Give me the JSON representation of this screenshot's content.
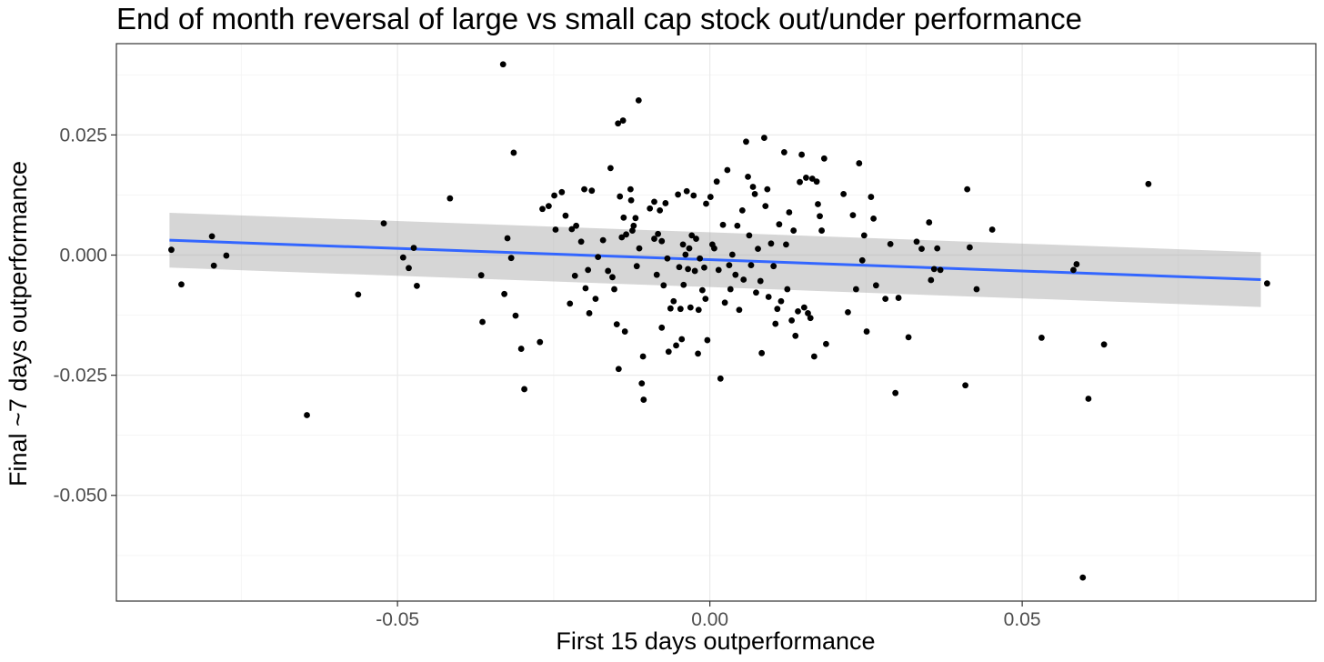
{
  "chart_data": {
    "type": "scatter",
    "title": "End of month reversal of large vs small cap stock out/under performance",
    "xlabel": "First 15 days outperformance",
    "ylabel": "Final ~7 days outperformance",
    "xlim": [
      -0.095,
      0.097
    ],
    "ylim": [
      -0.072,
      0.044
    ],
    "x_ticks": [
      -0.05,
      0.0,
      0.05
    ],
    "x_tick_labels": [
      "-0.05",
      "0.00",
      "0.05"
    ],
    "y_ticks": [
      -0.05,
      -0.025,
      0.0,
      0.025
    ],
    "y_tick_labels": [
      "-0.050",
      "-0.025",
      "0.000",
      "0.025"
    ],
    "grid": true,
    "theme": "bw",
    "colors": {
      "points": "#000000",
      "trend_line": "#3366ff",
      "confidence_band": "#999999"
    },
    "trend_line": {
      "method": "linear regression",
      "x": [
        -0.0865,
        0.0882
      ],
      "y": [
        0.0031,
        -0.0051
      ],
      "ci_lower": [
        -0.0026,
        -0.0108
      ],
      "ci_upper": [
        0.0088,
        0.0006
      ]
    },
    "points": [
      {
        "x": -0.0862,
        "y": 0.0011
      },
      {
        "x": -0.0846,
        "y": -0.0061
      },
      {
        "x": -0.0797,
        "y": 0.0039
      },
      {
        "x": -0.0794,
        "y": -0.0022
      },
      {
        "x": -0.0774,
        "y": -0.0001
      },
      {
        "x": -0.0645,
        "y": -0.0333
      },
      {
        "x": -0.0563,
        "y": -0.0082
      },
      {
        "x": -0.0522,
        "y": 0.0066
      },
      {
        "x": -0.0491,
        "y": -0.0005
      },
      {
        "x": -0.0482,
        "y": -0.0027
      },
      {
        "x": -0.0474,
        "y": 0.0015
      },
      {
        "x": -0.0469,
        "y": -0.0064
      },
      {
        "x": -0.0416,
        "y": 0.0118
      },
      {
        "x": -0.0366,
        "y": -0.0042
      },
      {
        "x": -0.0364,
        "y": -0.0139
      },
      {
        "x": -0.0331,
        "y": 0.0397
      },
      {
        "x": -0.0329,
        "y": -0.0081
      },
      {
        "x": -0.0324,
        "y": 0.0035
      },
      {
        "x": -0.0318,
        "y": -0.0006
      },
      {
        "x": -0.0314,
        "y": 0.0213
      },
      {
        "x": -0.0311,
        "y": -0.0126
      },
      {
        "x": -0.0302,
        "y": -0.0195
      },
      {
        "x": -0.0297,
        "y": -0.0279
      },
      {
        "x": -0.0272,
        "y": -0.0181
      },
      {
        "x": -0.0268,
        "y": 0.0096
      },
      {
        "x": -0.0258,
        "y": 0.0102
      },
      {
        "x": -0.0249,
        "y": 0.0124
      },
      {
        "x": -0.0247,
        "y": 0.0053
      },
      {
        "x": -0.0237,
        "y": 0.0131
      },
      {
        "x": -0.0231,
        "y": 0.0082
      },
      {
        "x": -0.0224,
        "y": -0.0101
      },
      {
        "x": -0.0221,
        "y": 0.0054
      },
      {
        "x": -0.0216,
        "y": -0.0043
      },
      {
        "x": -0.0214,
        "y": 0.0061
      },
      {
        "x": -0.0206,
        "y": 0.0028
      },
      {
        "x": -0.0201,
        "y": 0.0137
      },
      {
        "x": -0.0199,
        "y": -0.0069
      },
      {
        "x": -0.0195,
        "y": -0.0031
      },
      {
        "x": -0.0193,
        "y": -0.0121
      },
      {
        "x": -0.0189,
        "y": 0.0134
      },
      {
        "x": -0.0183,
        "y": -0.0091
      },
      {
        "x": -0.0179,
        "y": -0.0004
      },
      {
        "x": -0.0171,
        "y": 0.0031
      },
      {
        "x": -0.0163,
        "y": -0.0033
      },
      {
        "x": -0.0159,
        "y": 0.0181
      },
      {
        "x": -0.0156,
        "y": -0.0046
      },
      {
        "x": -0.0153,
        "y": -0.0071
      },
      {
        "x": -0.0149,
        "y": -0.0144
      },
      {
        "x": -0.0147,
        "y": 0.0274
      },
      {
        "x": -0.0144,
        "y": 0.0122
      },
      {
        "x": -0.0146,
        "y": -0.0237
      },
      {
        "x": -0.0141,
        "y": 0.0037
      },
      {
        "x": -0.0139,
        "y": 0.028
      },
      {
        "x": -0.0138,
        "y": 0.0078
      },
      {
        "x": -0.0136,
        "y": -0.0159
      },
      {
        "x": -0.0134,
        "y": 0.0043
      },
      {
        "x": -0.0127,
        "y": 0.0137
      },
      {
        "x": -0.0126,
        "y": 0.0114
      },
      {
        "x": -0.0124,
        "y": 0.0051
      },
      {
        "x": -0.0122,
        "y": 0.0061
      },
      {
        "x": -0.0119,
        "y": 0.0077
      },
      {
        "x": -0.0117,
        "y": -0.0023
      },
      {
        "x": -0.0114,
        "y": 0.0322
      },
      {
        "x": -0.0113,
        "y": 0.0014
      },
      {
        "x": -0.0109,
        "y": -0.0267
      },
      {
        "x": -0.0107,
        "y": -0.0211
      },
      {
        "x": -0.0106,
        "y": -0.0301
      },
      {
        "x": -0.0096,
        "y": 0.0097
      },
      {
        "x": -0.0089,
        "y": 0.0111
      },
      {
        "x": -0.0089,
        "y": 0.0034
      },
      {
        "x": -0.0085,
        "y": -0.0041
      },
      {
        "x": -0.0083,
        "y": 0.0044
      },
      {
        "x": -0.008,
        "y": 0.0093
      },
      {
        "x": -0.0077,
        "y": -0.0151
      },
      {
        "x": -0.0077,
        "y": 0.0029
      },
      {
        "x": -0.0074,
        "y": -0.0063
      },
      {
        "x": -0.0071,
        "y": 0.0108
      },
      {
        "x": -0.0068,
        "y": -0.0007
      },
      {
        "x": -0.0066,
        "y": -0.0201
      },
      {
        "x": -0.0063,
        "y": -0.0111
      },
      {
        "x": -0.0058,
        "y": -0.0096
      },
      {
        "x": -0.0054,
        "y": -0.0188
      },
      {
        "x": -0.0051,
        "y": 0.0126
      },
      {
        "x": -0.0049,
        "y": -0.0025
      },
      {
        "x": -0.0047,
        "y": -0.0112
      },
      {
        "x": -0.0045,
        "y": -0.0175
      },
      {
        "x": -0.0043,
        "y": 0.0022
      },
      {
        "x": -0.0042,
        "y": -0.0062
      },
      {
        "x": -0.0039,
        "y": 0.0001
      },
      {
        "x": -0.0037,
        "y": 0.0133
      },
      {
        "x": -0.0035,
        "y": -0.0029
      },
      {
        "x": -0.0033,
        "y": 0.0014
      },
      {
        "x": -0.0031,
        "y": -0.0109
      },
      {
        "x": -0.0029,
        "y": 0.0041
      },
      {
        "x": -0.0026,
        "y": 0.0124
      },
      {
        "x": -0.0024,
        "y": -0.0033
      },
      {
        "x": -0.0022,
        "y": 0.0034
      },
      {
        "x": -0.0019,
        "y": -0.0205
      },
      {
        "x": -0.0018,
        "y": -0.0114
      },
      {
        "x": -0.0016,
        "y": -0.0007
      },
      {
        "x": -0.0012,
        "y": -0.0073
      },
      {
        "x": -0.0009,
        "y": -0.0026
      },
      {
        "x": -0.0007,
        "y": -0.0091
      },
      {
        "x": -0.0006,
        "y": 0.0107
      },
      {
        "x": -0.0004,
        "y": -0.0177
      },
      {
        "x": 0.0001,
        "y": 0.0121
      },
      {
        "x": 0.0004,
        "y": 0.0022
      },
      {
        "x": 0.0007,
        "y": 0.0014
      },
      {
        "x": 0.0011,
        "y": 0.0153
      },
      {
        "x": 0.0014,
        "y": -0.0031
      },
      {
        "x": 0.0017,
        "y": -0.0257
      },
      {
        "x": 0.0021,
        "y": 0.0063
      },
      {
        "x": 0.0024,
        "y": -0.0099
      },
      {
        "x": 0.0028,
        "y": 0.0177
      },
      {
        "x": 0.0031,
        "y": -0.0021
      },
      {
        "x": 0.0033,
        "y": -0.0071
      },
      {
        "x": 0.0036,
        "y": 0.0001
      },
      {
        "x": 0.0041,
        "y": -0.0041
      },
      {
        "x": 0.0044,
        "y": 0.0061
      },
      {
        "x": 0.0047,
        "y": -0.0114
      },
      {
        "x": 0.0052,
        "y": 0.0093
      },
      {
        "x": 0.0054,
        "y": -0.0051
      },
      {
        "x": 0.0058,
        "y": 0.0236
      },
      {
        "x": 0.0061,
        "y": 0.0163
      },
      {
        "x": 0.0063,
        "y": 0.0041
      },
      {
        "x": 0.0066,
        "y": -0.0021
      },
      {
        "x": 0.0069,
        "y": 0.0142
      },
      {
        "x": 0.0072,
        "y": 0.0127
      },
      {
        "x": 0.0074,
        "y": -0.0078
      },
      {
        "x": 0.0077,
        "y": 0.0013
      },
      {
        "x": 0.0081,
        "y": -0.0054
      },
      {
        "x": 0.0083,
        "y": -0.0204
      },
      {
        "x": 0.0087,
        "y": 0.0244
      },
      {
        "x": 0.0089,
        "y": 0.0102
      },
      {
        "x": 0.0092,
        "y": 0.0137
      },
      {
        "x": 0.0094,
        "y": -0.0087
      },
      {
        "x": 0.0098,
        "y": 0.0024
      },
      {
        "x": 0.0102,
        "y": -0.0023
      },
      {
        "x": 0.0105,
        "y": -0.0143
      },
      {
        "x": 0.0108,
        "y": -0.0112
      },
      {
        "x": 0.0111,
        "y": 0.0064
      },
      {
        "x": 0.0114,
        "y": -0.0096
      },
      {
        "x": 0.0119,
        "y": 0.0214
      },
      {
        "x": 0.0122,
        "y": 0.0022
      },
      {
        "x": 0.0124,
        "y": -0.0071
      },
      {
        "x": 0.0127,
        "y": 0.0089
      },
      {
        "x": 0.0131,
        "y": -0.0136
      },
      {
        "x": 0.0134,
        "y": 0.0051
      },
      {
        "x": 0.0137,
        "y": -0.0168
      },
      {
        "x": 0.0141,
        "y": -0.0117
      },
      {
        "x": 0.0144,
        "y": 0.0152
      },
      {
        "x": 0.0147,
        "y": 0.0209
      },
      {
        "x": 0.0151,
        "y": -0.0109
      },
      {
        "x": 0.0154,
        "y": 0.0161
      },
      {
        "x": 0.0157,
        "y": -0.0121
      },
      {
        "x": 0.0161,
        "y": -0.0131
      },
      {
        "x": 0.0164,
        "y": 0.0159
      },
      {
        "x": 0.0167,
        "y": -0.0211
      },
      {
        "x": 0.0171,
        "y": 0.0153
      },
      {
        "x": 0.0173,
        "y": 0.0106
      },
      {
        "x": 0.0176,
        "y": 0.0081
      },
      {
        "x": 0.0179,
        "y": 0.0051
      },
      {
        "x": 0.0183,
        "y": 0.0201
      },
      {
        "x": 0.0186,
        "y": -0.0185
      },
      {
        "x": 0.0214,
        "y": 0.0127
      },
      {
        "x": 0.0221,
        "y": -0.0119
      },
      {
        "x": 0.0229,
        "y": 0.0083
      },
      {
        "x": 0.0234,
        "y": -0.0071
      },
      {
        "x": 0.0239,
        "y": 0.0191
      },
      {
        "x": 0.0244,
        "y": -0.0011
      },
      {
        "x": 0.0247,
        "y": 0.0041
      },
      {
        "x": 0.0251,
        "y": -0.0159
      },
      {
        "x": 0.0258,
        "y": 0.0121
      },
      {
        "x": 0.0262,
        "y": 0.0076
      },
      {
        "x": 0.0266,
        "y": -0.0063
      },
      {
        "x": 0.0281,
        "y": -0.0091
      },
      {
        "x": 0.0289,
        "y": 0.0023
      },
      {
        "x": 0.0297,
        "y": -0.0287
      },
      {
        "x": 0.0302,
        "y": -0.0089
      },
      {
        "x": 0.0318,
        "y": -0.0171
      },
      {
        "x": 0.0331,
        "y": 0.0028
      },
      {
        "x": 0.0339,
        "y": 0.0013
      },
      {
        "x": 0.0351,
        "y": 0.0068
      },
      {
        "x": 0.0354,
        "y": -0.0052
      },
      {
        "x": 0.0359,
        "y": -0.0029
      },
      {
        "x": 0.0364,
        "y": 0.0014
      },
      {
        "x": 0.0369,
        "y": -0.0031
      },
      {
        "x": 0.0409,
        "y": -0.0271
      },
      {
        "x": 0.0412,
        "y": 0.0137
      },
      {
        "x": 0.0416,
        "y": 0.0016
      },
      {
        "x": 0.0427,
        "y": -0.0071
      },
      {
        "x": 0.0452,
        "y": 0.0053
      },
      {
        "x": 0.0531,
        "y": -0.0172
      },
      {
        "x": 0.0582,
        "y": -0.0031
      },
      {
        "x": 0.0587,
        "y": -0.0019
      },
      {
        "x": 0.0597,
        "y": -0.0671
      },
      {
        "x": 0.0606,
        "y": -0.0299
      },
      {
        "x": 0.0631,
        "y": -0.0186
      },
      {
        "x": 0.0702,
        "y": 0.0148
      },
      {
        "x": 0.0892,
        "y": -0.0059
      }
    ]
  }
}
